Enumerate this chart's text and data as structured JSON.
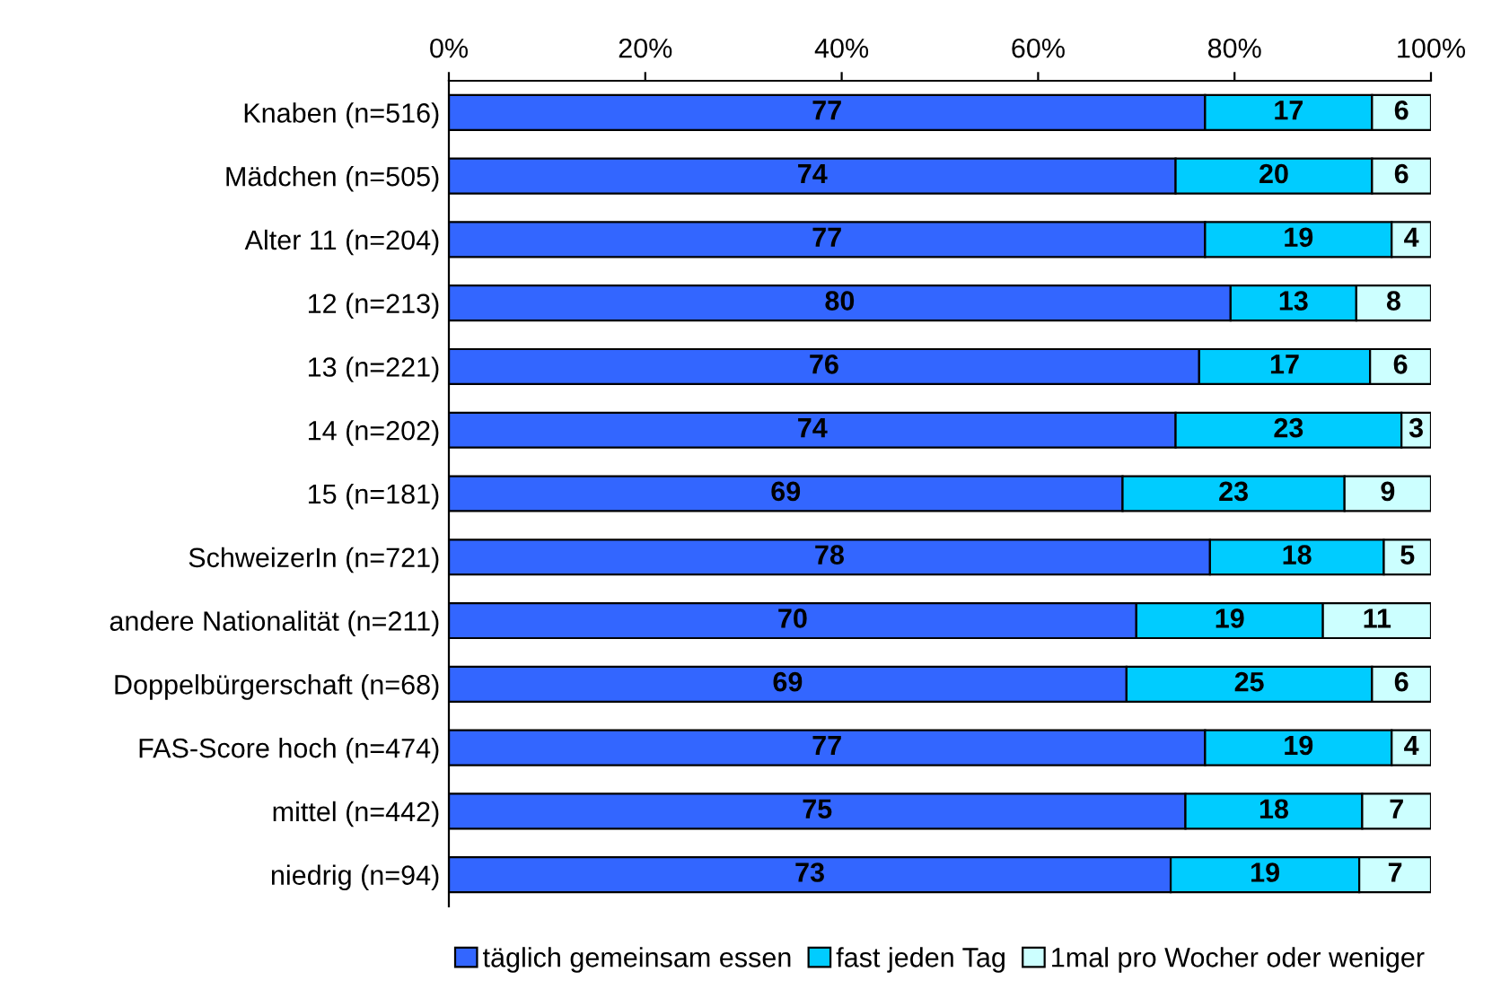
{
  "chart_data": {
    "type": "bar",
    "orientation": "horizontal",
    "stacked": true,
    "categories": [
      "Knaben (n=516)",
      "Mädchen (n=505)",
      "Alter 11 (n=204)",
      "12 (n=213)",
      "13 (n=221)",
      "14 (n=202)",
      "15 (n=181)",
      "SchweizerIn (n=721)",
      "andere Nationalität (n=211)",
      "Doppelbürgerschaft (n=68)",
      "FAS-Score hoch (n=474)",
      "mittel (n=442)",
      "niedrig (n=94)"
    ],
    "series": [
      {
        "name": "täglich gemeinsam essen",
        "color": "#3366ff",
        "values": [
          77,
          74,
          77,
          79.6,
          76.4,
          74,
          68.6,
          77.5,
          70,
          69,
          77,
          75,
          73.5
        ],
        "value_labels": [
          "77",
          "74",
          "77",
          "80",
          "76",
          "74",
          "69",
          "78",
          "70",
          "69",
          "77",
          "75",
          "73"
        ]
      },
      {
        "name": "fast jeden Tag",
        "color": "#00ccff",
        "values": [
          17,
          20,
          19,
          12.8,
          17.4,
          23,
          22.6,
          17.7,
          19,
          25,
          19,
          18,
          19.2
        ],
        "value_labels": [
          "17",
          "20",
          "19",
          "13",
          "17",
          "23",
          "23",
          "18",
          "19",
          "25",
          "19",
          "18",
          "19"
        ]
      },
      {
        "name": "1mal pro Wocher oder weniger",
        "color": "#ccffff",
        "values": [
          6,
          6,
          4,
          7.6,
          6.2,
          3,
          8.8,
          4.8,
          11,
          6,
          4,
          7,
          7.3
        ],
        "value_labels": [
          "6",
          "6",
          "4",
          "8",
          "6",
          "3",
          "9",
          "5",
          "11",
          "6",
          "4",
          "7",
          "7"
        ]
      }
    ],
    "xlim": [
      0,
      100
    ],
    "xticks": [
      {
        "value": 0,
        "label": "0%"
      },
      {
        "value": 20,
        "label": "20%"
      },
      {
        "value": 40,
        "label": "40%"
      },
      {
        "value": 60,
        "label": "60%"
      },
      {
        "value": 80,
        "label": "80%"
      },
      {
        "value": 100,
        "label": "100%"
      }
    ],
    "legend": "bottom",
    "grid": false
  }
}
